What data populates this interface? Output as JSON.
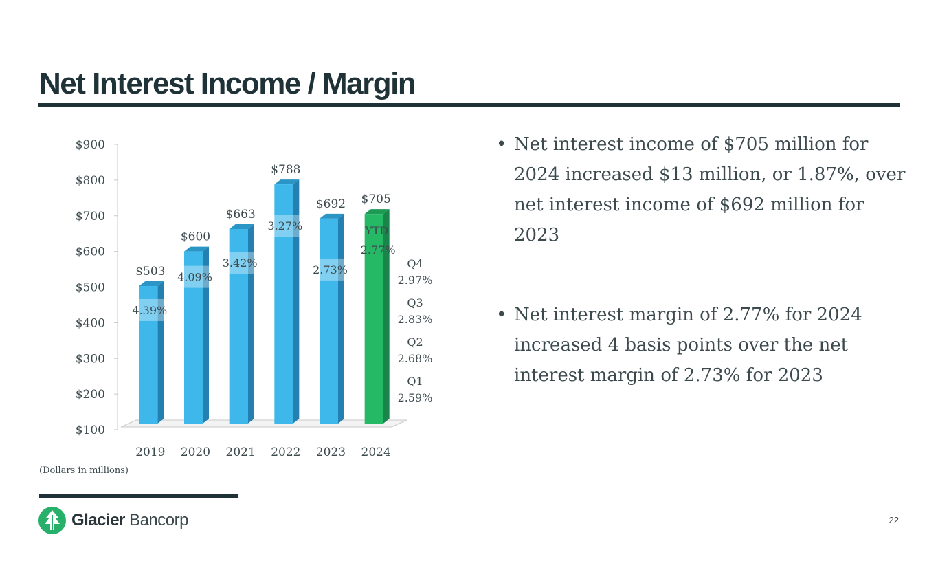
{
  "slide": {
    "title": "Net Interest Income / Margin",
    "footnote": "(Dollars in millions)",
    "page_number": "22",
    "brand": {
      "name_bold": "Glacier",
      "name_light": " Bancorp"
    }
  },
  "bullets": [
    "Net interest income of $705 million for 2024 increased $13 million, or 1.87%, over net interest income of $692 million for 2023",
    "Net interest margin of 2.77% for 2024 increased 4 basis points over the net interest margin of 2.73% for 2023"
  ],
  "colors": {
    "title": "#1e3237",
    "bar_blue": "#3eb7ea",
    "bar_green": "#25b865",
    "text": "#3c4a4e"
  },
  "chart_data": {
    "type": "bar",
    "categories": [
      "2019",
      "2020",
      "2021",
      "2022",
      "2023",
      "2024"
    ],
    "values": [
      503,
      600,
      663,
      788,
      692,
      705
    ],
    "value_labels": [
      "$503",
      "$600",
      "$663",
      "$788",
      "$692",
      "$705"
    ],
    "margin_labels": [
      "4.39%",
      "4.09%",
      "3.42%",
      "3.27%",
      "2.73%",
      "2.77%"
    ],
    "ytd_label": "YTD",
    "highlight_category": "2024",
    "quarterly_margins": [
      {
        "quarter": "Q4",
        "value": "2.97%"
      },
      {
        "quarter": "Q3",
        "value": "2.83%"
      },
      {
        "quarter": "Q2",
        "value": "2.68%"
      },
      {
        "quarter": "Q1",
        "value": "2.59%"
      }
    ],
    "ylim": [
      100,
      900
    ],
    "yticks": [
      "$100",
      "$200",
      "$300",
      "$400",
      "$500",
      "$600",
      "$700",
      "$800",
      "$900"
    ],
    "grid": false,
    "legend": "none"
  }
}
